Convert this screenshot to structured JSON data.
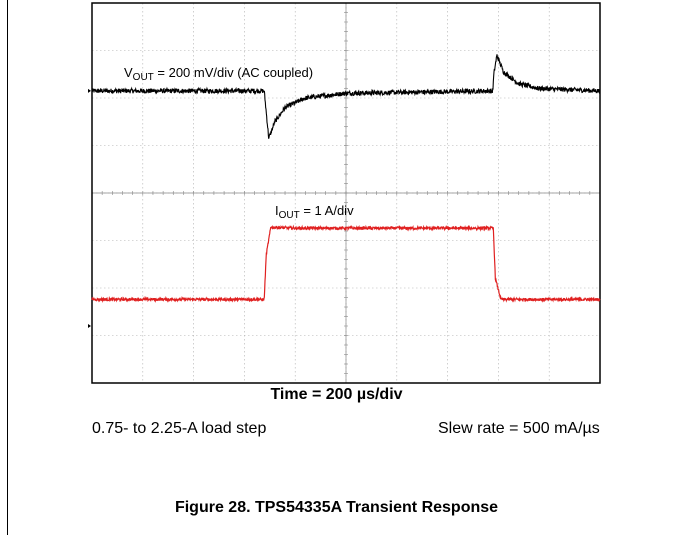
{
  "chart_data": {
    "type": "line",
    "title": "",
    "grid": true,
    "divisions": {
      "x": 10,
      "y": 8
    },
    "x_unit": "div",
    "y_unit": "div",
    "xlim": [
      0,
      10
    ],
    "ylim": [
      0,
      8
    ],
    "series": [
      {
        "label_prefix": "V",
        "label_sub": "OUT",
        "label_rest": " = 200 mV/div (AC coupled)",
        "color": "#000000",
        "baseline_div": 6.15,
        "noise_div": 0.05,
        "x": [
          0,
          3.39,
          3.43,
          3.48,
          3.6,
          3.8,
          4.2,
          5.0,
          7.89,
          7.91,
          7.97,
          8.1,
          8.4,
          8.8,
          10
        ],
        "y": [
          6.15,
          6.15,
          5.7,
          5.15,
          5.5,
          5.8,
          6.0,
          6.1,
          6.15,
          6.5,
          6.9,
          6.55,
          6.3,
          6.2,
          6.15
        ]
      },
      {
        "label_prefix": "I",
        "label_sub": "OUT",
        "label_rest": " = 1 A/div",
        "color": "#e02020",
        "noise_div": 0.03,
        "x": [
          0,
          3.39,
          3.43,
          3.52,
          4.0,
          7.9,
          7.94,
          8.05,
          10
        ],
        "y": [
          1.76,
          1.76,
          2.7,
          3.28,
          3.26,
          3.26,
          2.2,
          1.76,
          1.76
        ]
      }
    ],
    "xlabel": "Time = 200 µs/div"
  },
  "notes": {
    "load_step": "0.75- to 2.25-A load step",
    "slew_rate": "Slew rate = 500 mA/µs"
  },
  "caption": "Figure 28. TPS54335A Transient Response"
}
